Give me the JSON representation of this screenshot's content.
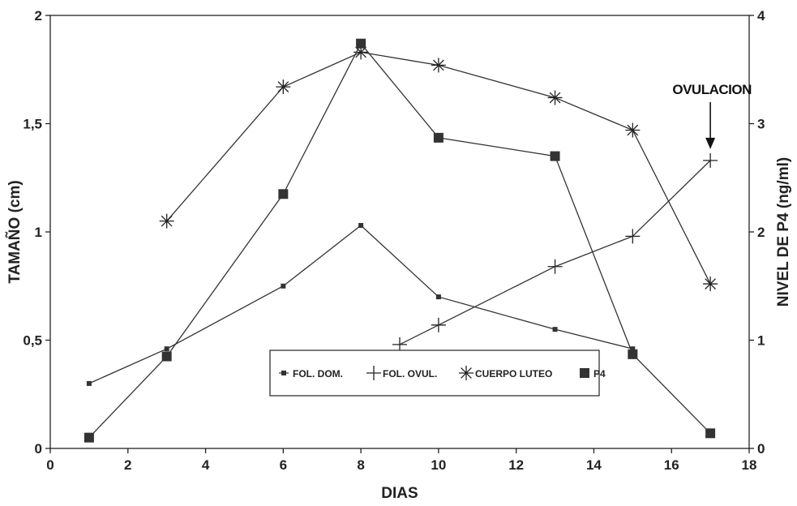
{
  "chart_data": {
    "type": "line",
    "xlabel": "DIAS",
    "ylabel_left": "TAMAÑO (cm)",
    "ylabel_right": "NIVEL DE P4 (ng/ml)",
    "xlim": [
      0,
      18
    ],
    "ylim_left": [
      0,
      2
    ],
    "ylim_right": [
      0,
      4
    ],
    "x_ticks": [
      "0",
      "2",
      "4",
      "6",
      "8",
      "10",
      "12",
      "14",
      "16",
      "18"
    ],
    "y_ticks_left": [
      "0",
      "0,5",
      "1",
      "1,5",
      "2"
    ],
    "y_ticks_right": [
      "0",
      "1",
      "2",
      "3",
      "4"
    ],
    "grid": false,
    "legend_position": "bottom-center",
    "annotation": {
      "text": "OVULACION",
      "x": 17,
      "y": 1.33
    },
    "series": [
      {
        "name": "FOL. DOM.",
        "axis": "left",
        "marker": "small-square",
        "x": [
          1,
          3,
          6,
          8,
          10,
          13,
          15
        ],
        "y": [
          0.3,
          0.46,
          0.75,
          1.03,
          0.7,
          0.55,
          0.46
        ]
      },
      {
        "name": "FOL. OVUL.",
        "axis": "left",
        "marker": "plus",
        "x": [
          9,
          10,
          13,
          15,
          17
        ],
        "y": [
          0.48,
          0.57,
          0.84,
          0.98,
          1.33
        ]
      },
      {
        "name": "CUERPO LUTEO",
        "axis": "left",
        "marker": "asterisk",
        "x": [
          3,
          6,
          8,
          10,
          13,
          15,
          17
        ],
        "y": [
          1.05,
          1.67,
          1.83,
          1.77,
          1.62,
          1.47,
          0.76
        ]
      },
      {
        "name": "P4",
        "axis": "right",
        "marker": "big-square",
        "x": [
          1,
          3,
          6,
          8,
          10,
          13,
          15,
          17
        ],
        "y": [
          0.1,
          0.85,
          2.35,
          3.74,
          2.87,
          2.7,
          0.87,
          0.14
        ]
      }
    ]
  }
}
